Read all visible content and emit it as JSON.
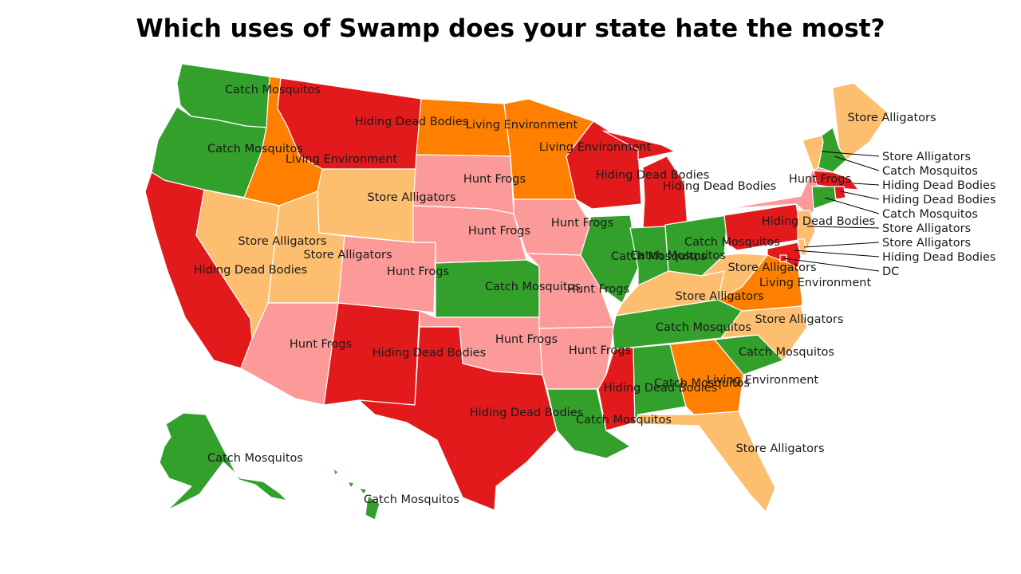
{
  "title": "Which uses of Swamp does your state hate the most?",
  "colors": {
    "catch_mosquitos": "#33a02c",
    "hiding_dead_bodies": "#e31a1c",
    "living_environment": "#ff7f00",
    "store_alligators": "#fdbf6f",
    "hunt_frogs": "#fb9a99"
  },
  "regions": [
    {
      "id": "WA",
      "cat": "catch_mosquitos",
      "label": "Catch Mosquitos"
    },
    {
      "id": "OR",
      "cat": "catch_mosquitos",
      "label": "Catch Mosquitos"
    },
    {
      "id": "CA",
      "cat": "hiding_dead_bodies",
      "label": "Hiding Dead Bodies"
    },
    {
      "id": "ID",
      "cat": "living_environment",
      "label": "Living Environment"
    },
    {
      "id": "NV",
      "cat": "store_alligators",
      "label": "Store Alligators"
    },
    {
      "id": "MT",
      "cat": "hiding_dead_bodies",
      "label": "Hiding Dead Bodies"
    },
    {
      "id": "WY",
      "cat": "store_alligators",
      "label": "Store Alligators"
    },
    {
      "id": "UT",
      "cat": "store_alligators",
      "label": "Store Alligators"
    },
    {
      "id": "AZ",
      "cat": "hunt_frogs",
      "label": "Hunt Frogs"
    },
    {
      "id": "CO",
      "cat": "hunt_frogs",
      "label": "Hunt Frogs"
    },
    {
      "id": "NM",
      "cat": "hiding_dead_bodies",
      "label": "Hiding Dead Bodies"
    },
    {
      "id": "ND",
      "cat": "living_environment",
      "label": "Living Environment"
    },
    {
      "id": "SD",
      "cat": "hunt_frogs",
      "label": "Hunt Frogs"
    },
    {
      "id": "NE",
      "cat": "hunt_frogs",
      "label": "Hunt Frogs"
    },
    {
      "id": "KS",
      "cat": "catch_mosquitos",
      "label": "Catch Mosquitos"
    },
    {
      "id": "OK",
      "cat": "hunt_frogs",
      "label": "Hunt Frogs"
    },
    {
      "id": "TX",
      "cat": "hiding_dead_bodies",
      "label": "Hiding Dead Bodies"
    },
    {
      "id": "MN",
      "cat": "living_environment",
      "label": "Living Environment"
    },
    {
      "id": "IA",
      "cat": "hunt_frogs",
      "label": "Hunt Frogs"
    },
    {
      "id": "MO",
      "cat": "hunt_frogs",
      "label": "Hunt Frogs"
    },
    {
      "id": "AR",
      "cat": "hunt_frogs",
      "label": "Hunt Frogs"
    },
    {
      "id": "LA",
      "cat": "catch_mosquitos",
      "label": "Catch Mosquitos"
    },
    {
      "id": "WI",
      "cat": "hiding_dead_bodies",
      "label": "Hiding Dead Bodies"
    },
    {
      "id": "MI",
      "cat": "hiding_dead_bodies",
      "label": "Hiding Dead Bodies"
    },
    {
      "id": "IL",
      "cat": "catch_mosquitos",
      "label": "Catch Mosquitos"
    },
    {
      "id": "IN",
      "cat": "catch_mosquitos",
      "label": "Catch Mosquitos"
    },
    {
      "id": "OH",
      "cat": "catch_mosquitos",
      "label": "Catch Mosquitos"
    },
    {
      "id": "KY",
      "cat": "store_alligators",
      "label": "Store Alligators"
    },
    {
      "id": "TN",
      "cat": "catch_mosquitos",
      "label": "Catch Mosquitos"
    },
    {
      "id": "MS",
      "cat": "hiding_dead_bodies",
      "label": "Hiding Dead Bodies"
    },
    {
      "id": "AL",
      "cat": "catch_mosquitos",
      "label": "Catch Mosquitos"
    },
    {
      "id": "GA",
      "cat": "living_environment",
      "label": "Living Environment"
    },
    {
      "id": "FL",
      "cat": "store_alligators",
      "label": "Store Alligators"
    },
    {
      "id": "SC",
      "cat": "catch_mosquitos",
      "label": "Catch Mosquitos"
    },
    {
      "id": "NC",
      "cat": "store_alligators",
      "label": "Store Alligators"
    },
    {
      "id": "VA",
      "cat": "living_environment",
      "label": "Living Environment"
    },
    {
      "id": "WV",
      "cat": "store_alligators",
      "label": "Store Alligators"
    },
    {
      "id": "PA",
      "cat": "hiding_dead_bodies",
      "label": "Hiding Dead Bodies"
    },
    {
      "id": "NY",
      "cat": "hunt_frogs",
      "label": "Hunt Frogs"
    },
    {
      "id": "ME",
      "cat": "store_alligators",
      "label": "Store Alligators"
    },
    {
      "id": "VT",
      "cat": "store_alligators",
      "label": "Store Alligators"
    },
    {
      "id": "NH",
      "cat": "catch_mosquitos",
      "label": "Catch Mosquitos"
    },
    {
      "id": "MA",
      "cat": "hiding_dead_bodies",
      "label": "Hiding Dead Bodies"
    },
    {
      "id": "RI",
      "cat": "hiding_dead_bodies",
      "label": "Hiding Dead Bodies"
    },
    {
      "id": "CT",
      "cat": "catch_mosquitos",
      "label": "Catch Mosquitos"
    },
    {
      "id": "NJ",
      "cat": "store_alligators",
      "label": "Store Alligators"
    },
    {
      "id": "DE",
      "cat": "store_alligators",
      "label": "Store Alligators"
    },
    {
      "id": "MD",
      "cat": "hiding_dead_bodies",
      "label": "Hiding Dead Bodies"
    },
    {
      "id": "DC",
      "cat": "hiding_dead_bodies",
      "label": "DC"
    },
    {
      "id": "AK",
      "cat": "catch_mosquitos",
      "label": "Catch Mosquitos"
    },
    {
      "id": "HI",
      "cat": "catch_mosquitos",
      "label": "Catch Mosquitos"
    }
  ]
}
